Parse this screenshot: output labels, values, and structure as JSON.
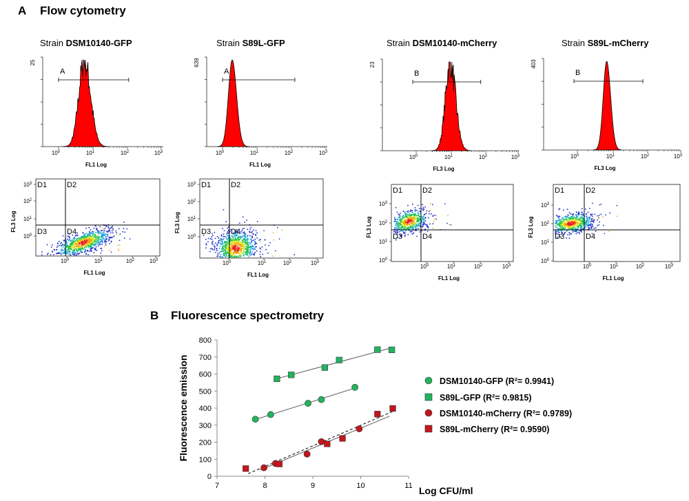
{
  "panel_a": {
    "letter": "A",
    "title": "Flow cytometry",
    "strains": [
      {
        "prefix": "Strain ",
        "name": "DSM10140-GFP"
      },
      {
        "prefix": "Strain ",
        "name": "S89L-GFP"
      },
      {
        "prefix": "Strain ",
        "name": "DSM10140-mCherry"
      },
      {
        "prefix": "Strain ",
        "name": "S89L-mCherry"
      }
    ],
    "histograms": [
      {
        "ymax": "25",
        "gate": "A",
        "xlabel": "FL1 Log",
        "peak_log": 0.75,
        "width": 0.16,
        "noisy": true,
        "gate_range": [
          0.0,
          2.05
        ]
      },
      {
        "ymax": "639",
        "gate": "A",
        "xlabel": "FL1 Log",
        "peak_log": 0.28,
        "width": 0.11,
        "noisy": false,
        "gate_range": [
          0.0,
          2.1
        ]
      },
      {
        "ymax": "23",
        "gate": "B",
        "xlabel": "FL3 Log",
        "peak_log": 1.0,
        "width": 0.14,
        "noisy": true,
        "gate_range": [
          -0.1,
          1.9
        ]
      },
      {
        "ymax": "403",
        "gate": "B",
        "xlabel": "FL3 Log",
        "peak_log": 0.85,
        "width": 0.1,
        "noisy": false,
        "gate_range": [
          -0.1,
          1.9
        ]
      }
    ],
    "hist_ticks": [
      "10",
      "10",
      "10",
      "10"
    ],
    "hist_tick_exps": [
      "0",
      "1",
      "2",
      "3"
    ],
    "dotplots": [
      {
        "xlabel": "FL1 Log",
        "ylabel": "FL3 Log",
        "quadrants": [
          "D1",
          "D2",
          "D3",
          "D4"
        ]
      },
      {
        "xlabel": "FL1 Log",
        "ylabel": "FL3 Log",
        "quadrants": [
          "D1",
          "D2",
          "D3",
          "D4"
        ]
      },
      {
        "xlabel": "FL1 Log",
        "ylabel": "FL3 Log",
        "quadrants": [
          "D1",
          "D2",
          "D3",
          "D4"
        ]
      },
      {
        "xlabel": "FL1 Log",
        "ylabel": "FL3 Log",
        "quadrants": [
          "D1",
          "D2",
          "D3",
          "D4"
        ]
      }
    ]
  },
  "panel_b": {
    "letter": "B",
    "title": "Fluorescence spectrometry"
  },
  "chart_data": [
    {
      "type": "scatter",
      "title": "Fluorescence spectrometry",
      "xlabel": "Log CFU/ml",
      "ylabel": "Fluorescence emission",
      "xlim": [
        7,
        11
      ],
      "ylim": [
        0,
        800
      ],
      "x_ticks": [
        7,
        8,
        9,
        10,
        11
      ],
      "y_ticks": [
        0,
        100,
        200,
        300,
        400,
        500,
        600,
        700,
        800
      ],
      "series": [
        {
          "name": "DSM10140-GFP",
          "r2_label": "DSM10140-GFP (R²= 0.9941)",
          "marker": "circle",
          "color": "#22b35e",
          "x": [
            7.8,
            8.12,
            8.9,
            9.18,
            9.88
          ],
          "y": [
            335,
            362,
            428,
            450,
            522
          ],
          "trend": "solid"
        },
        {
          "name": "S89L-GFP",
          "r2_label": "S89L-GFP (R²= 0.9815)",
          "marker": "square",
          "color": "#22b35e",
          "x": [
            8.25,
            8.55,
            9.25,
            9.55,
            10.35,
            10.65
          ],
          "y": [
            572,
            595,
            638,
            682,
            743,
            742
          ],
          "trend": "solid"
        },
        {
          "name": "DSM10140-mCherry",
          "r2_label": "DSM10140-mCherry (R²= 0.9789)",
          "marker": "circle",
          "color": "#c4161c",
          "x": [
            7.98,
            8.22,
            8.88,
            9.18,
            9.97
          ],
          "y": [
            50,
            75,
            130,
            203,
            278
          ],
          "trend": "solid"
        },
        {
          "name": "S89L-mCherry",
          "r2_label": "S89L-mCherry (R²= 0.9590)",
          "marker": "square",
          "color": "#c4161c",
          "x": [
            7.6,
            8.3,
            9.3,
            9.62,
            10.35,
            10.67
          ],
          "y": [
            45,
            72,
            190,
            222,
            365,
            398
          ],
          "trend": "dashed"
        }
      ]
    }
  ]
}
